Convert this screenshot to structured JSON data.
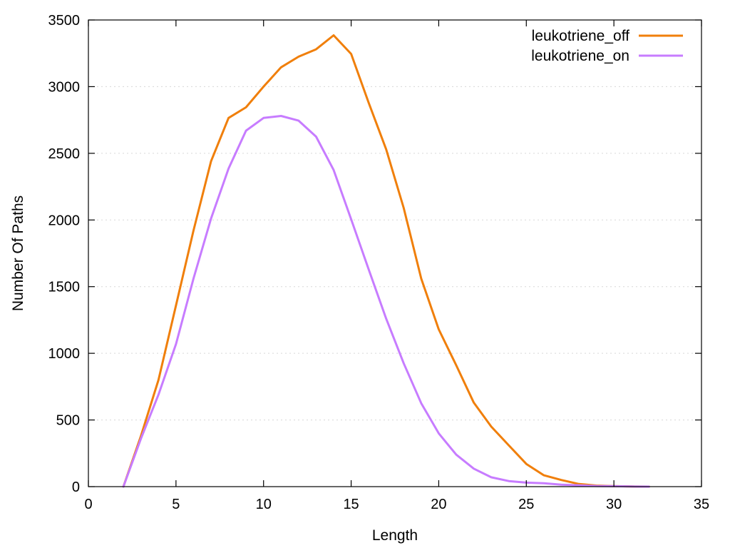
{
  "chart_data": {
    "type": "line",
    "title": "",
    "xlabel": "Length",
    "ylabel": "Number Of Paths",
    "xlim": [
      0,
      35
    ],
    "ylim": [
      0,
      3500
    ],
    "xticks": [
      0,
      5,
      10,
      15,
      20,
      25,
      30,
      35
    ],
    "yticks": [
      0,
      500,
      1000,
      1500,
      2000,
      2500,
      3000,
      3500
    ],
    "grid": "horizontal dotted",
    "legend_position": "top-right",
    "series": [
      {
        "name": "leukotriene_off",
        "color": "#f07f0b",
        "x": [
          2,
          3,
          4,
          5,
          6,
          7,
          8,
          9,
          10,
          11,
          12,
          13,
          14,
          15,
          16,
          17,
          18,
          19,
          20,
          21,
          22,
          23,
          24,
          25,
          26,
          27,
          28,
          29,
          30,
          31,
          32
        ],
        "y": [
          0,
          380,
          800,
          1360,
          1920,
          2440,
          2765,
          2845,
          3000,
          3145,
          3225,
          3280,
          3385,
          3245,
          2880,
          2530,
          2090,
          1560,
          1180,
          910,
          630,
          450,
          310,
          170,
          85,
          50,
          20,
          8,
          4,
          1,
          0
        ]
      },
      {
        "name": "leukotriene_on",
        "color": "#c77cff",
        "x": [
          2,
          3,
          4,
          5,
          6,
          7,
          8,
          9,
          10,
          11,
          12,
          13,
          14,
          15,
          16,
          17,
          18,
          19,
          20,
          21,
          22,
          23,
          24,
          25,
          26,
          27,
          28,
          29,
          30,
          31,
          32
        ],
        "y": [
          0,
          360,
          690,
          1070,
          1560,
          2010,
          2385,
          2670,
          2765,
          2780,
          2745,
          2625,
          2375,
          2005,
          1630,
          1260,
          925,
          625,
          400,
          240,
          135,
          70,
          42,
          30,
          25,
          15,
          10,
          5,
          3,
          1,
          0
        ]
      }
    ]
  }
}
